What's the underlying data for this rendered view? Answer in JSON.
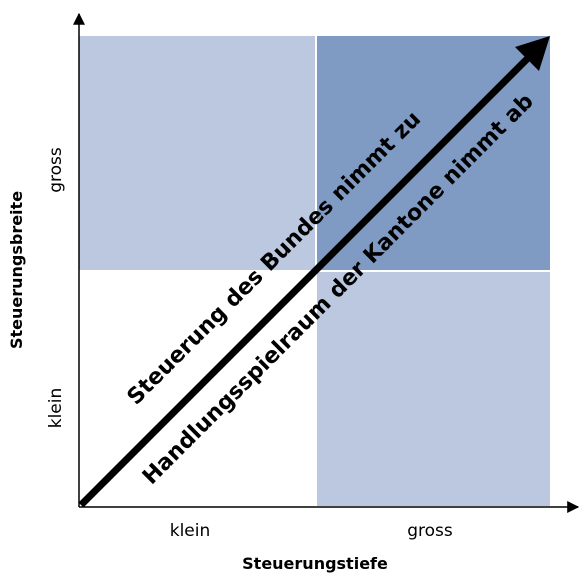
{
  "axes": {
    "x_title": "Steuerungstiefe",
    "y_title": "Steuerungsbreite",
    "x_low": "klein",
    "x_high": "gross",
    "y_low": "klein",
    "y_high": "gross"
  },
  "arrow": {
    "upper_label": "Steuerung des Bundes nimmt zu",
    "lower_label": "Handlungsspielraum der Kantone nimmt ab"
  },
  "colors": {
    "light_quadrant": "#bcc8e0",
    "dark_quadrant": "#7f9bc4",
    "white_quadrant": "#ffffff",
    "arrow": "#000000"
  }
}
